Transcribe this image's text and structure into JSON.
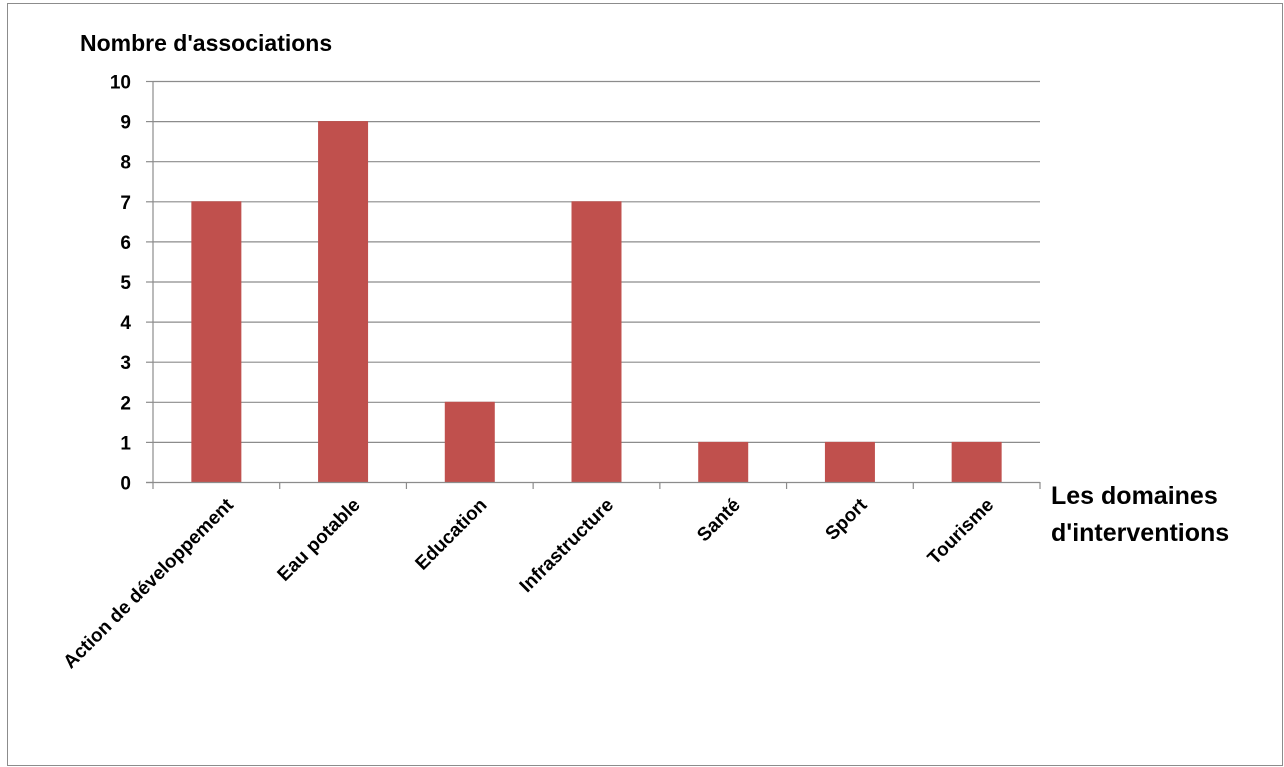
{
  "chart_data": {
    "type": "bar",
    "ylabel": "Nombre d'associations",
    "xlabel_lines": [
      "Les domaines",
      "d'interventions"
    ],
    "categories": [
      "Action de développement",
      "Eau potable",
      "Education",
      "Infrastructure",
      "Santé",
      "Sport",
      "Tourisme"
    ],
    "values": [
      7,
      9,
      2,
      7,
      1,
      1,
      1
    ],
    "ylim": [
      0,
      10
    ],
    "yticks": [
      "0",
      "1",
      "2",
      "3",
      "4",
      "5",
      "6",
      "7",
      "8",
      "9",
      "10"
    ],
    "grid": true,
    "legend": "none",
    "bar_color": "#c0504d",
    "grid_color": "#8c8c8c"
  }
}
